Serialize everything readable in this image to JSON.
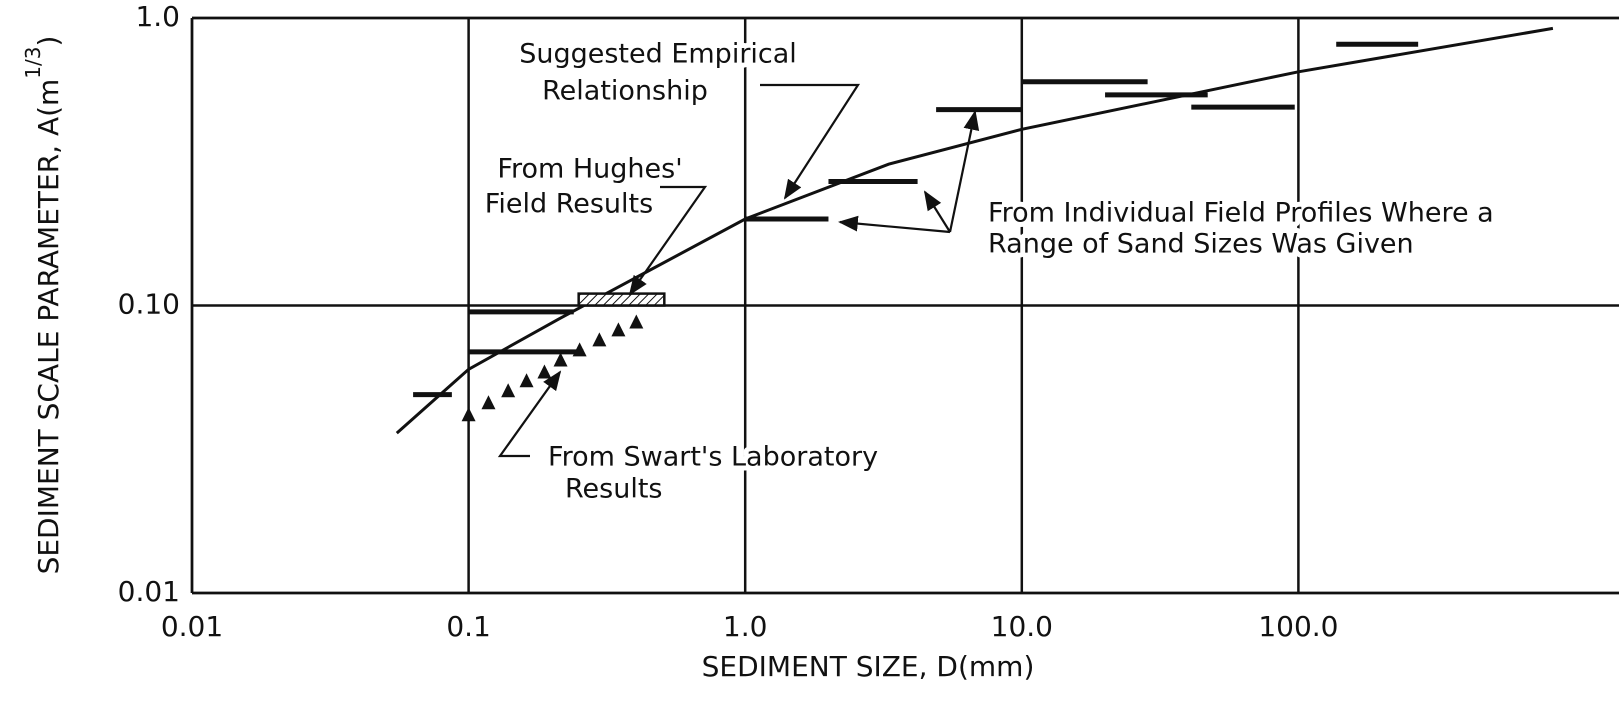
{
  "chart_data": {
    "type": "line",
    "xlabel": "SEDIMENT SIZE, D(mm)",
    "ylabel_parts": [
      "SEDIMENT SCALE PARAMETER, A(m",
      "1/3",
      ")"
    ],
    "xscale": "log",
    "yscale": "log",
    "xlim": [
      0.01,
      1000
    ],
    "ylim": [
      0.01,
      1.0
    ],
    "xticks": [
      0.01,
      0.1,
      {
        "value": 1,
        "label": "1.0"
      },
      {
        "value": 10,
        "label": "10.0"
      },
      {
        "value": 100,
        "label": "100.0"
      }
    ],
    "yticks": [
      0.01,
      {
        "value": 0.1,
        "label": "0.10"
      },
      {
        "value": 1,
        "label": "1.0"
      }
    ],
    "grid": true,
    "color": "#111111",
    "curve": {
      "x": [
        0.055,
        0.1,
        0.213,
        1,
        3.3,
        10,
        100,
        832
      ],
      "values": [
        0.036,
        0.06,
        0.09,
        0.2,
        0.31,
        0.41,
        0.65,
        0.92
      ]
    },
    "range_bars": [
      {
        "x0": 0.063,
        "x1": 0.087,
        "value": 0.049
      },
      {
        "x0": 0.1,
        "x1": 0.24,
        "value": 0.095
      },
      {
        "x0": 0.1,
        "x1": 0.26,
        "value": 0.069
      },
      {
        "x0": 1,
        "x1": 2.0,
        "value": 0.2
      },
      {
        "x0": 2.0,
        "x1": 4.2,
        "value": 0.27
      },
      {
        "x0": 4.9,
        "x1": 10,
        "value": 0.48
      },
      {
        "x0": 10,
        "x1": 28.5,
        "value": 0.6
      },
      {
        "x0": 20,
        "x1": 47,
        "value": 0.54
      },
      {
        "x0": 41,
        "x1": 97,
        "value": 0.49
      },
      {
        "x0": 137,
        "x1": 271,
        "value": 0.81
      }
    ],
    "hughes_box": {
      "x0": 0.25,
      "x1": 0.51,
      "y0": 0.1,
      "y1": 0.11
    },
    "swart": {
      "x": [
        0.1,
        0.118,
        0.139,
        0.162,
        0.188,
        0.215,
        0.252,
        0.297,
        0.348,
        0.404
      ],
      "values": [
        0.0415,
        0.0457,
        0.0503,
        0.0545,
        0.0585,
        0.0644,
        0.0698,
        0.0756,
        0.0819,
        0.0873
      ]
    },
    "annotations": [
      {
        "lines": [
          "Suggested Empirical",
          "Relationship"
        ]
      },
      {
        "lines": [
          "From Hughes'",
          "Field Results"
        ]
      },
      {
        "lines": [
          "From Individual Field Profiles Where a",
          "Range of Sand Sizes Was Given"
        ]
      },
      {
        "lines": [
          "From Swart's Laboratory",
          "Results"
        ]
      }
    ]
  }
}
